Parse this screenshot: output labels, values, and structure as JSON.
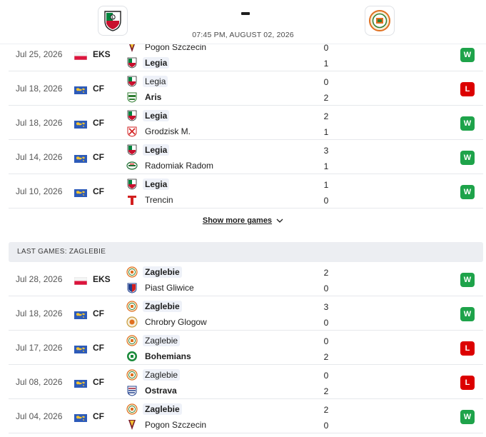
{
  "header": {
    "home_logo": "legia-crest-icon",
    "away_logo": "zaglebie-crest-icon",
    "score_separator": "-",
    "kickoff": "07:45 PM, AUGUST 02, 2026"
  },
  "legia_games": [
    {
      "date": "Jul 25, 2026",
      "flag": "poland-flag-icon",
      "comp": "EKS",
      "team1": "Pogon Szczecin",
      "team1_logo": "pogon-crest-icon",
      "team1_hl": false,
      "team1_win": false,
      "score1": "0",
      "team2": "Legia",
      "team2_logo": "legia-crest-icon",
      "team2_hl": true,
      "team2_win": true,
      "score2": "1",
      "result": "W"
    },
    {
      "date": "Jul 18, 2026",
      "flag": "world-flag-icon",
      "comp": "CF",
      "team1": "Legia",
      "team1_logo": "legia-crest-icon",
      "team1_hl": true,
      "team1_win": false,
      "score1": "0",
      "team2": "Aris",
      "team2_logo": "aris-crest-icon",
      "team2_hl": false,
      "team2_win": true,
      "score2": "2",
      "result": "L"
    },
    {
      "date": "Jul 18, 2026",
      "flag": "world-flag-icon",
      "comp": "CF",
      "team1": "Legia",
      "team1_logo": "legia-crest-icon",
      "team1_hl": true,
      "team1_win": true,
      "score1": "2",
      "team2": "Grodzisk M.",
      "team2_logo": "grodzisk-crest-icon",
      "team2_hl": false,
      "team2_win": false,
      "score2": "1",
      "result": "W"
    },
    {
      "date": "Jul 14, 2026",
      "flag": "world-flag-icon",
      "comp": "CF",
      "team1": "Legia",
      "team1_logo": "legia-crest-icon",
      "team1_hl": true,
      "team1_win": true,
      "score1": "3",
      "team2": "Radomiak Radom",
      "team2_logo": "radomiak-crest-icon",
      "team2_hl": false,
      "team2_win": false,
      "score2": "1",
      "result": "W"
    },
    {
      "date": "Jul 10, 2026",
      "flag": "world-flag-icon",
      "comp": "CF",
      "team1": "Legia",
      "team1_logo": "legia-crest-icon",
      "team1_hl": true,
      "team1_win": true,
      "score1": "1",
      "team2": "Trencin",
      "team2_logo": "trencin-crest-icon",
      "team2_hl": false,
      "team2_win": false,
      "score2": "0",
      "result": "W"
    }
  ],
  "show_more_label": "Show more games",
  "zaglebie_section_title": "LAST GAMES: ZAGLEBIE",
  "zaglebie_games": [
    {
      "date": "Jul 28, 2026",
      "flag": "poland-flag-icon",
      "comp": "EKS",
      "team1": "Zaglebie",
      "team1_logo": "zaglebie-crest-icon",
      "team1_hl": true,
      "team1_win": true,
      "score1": "2",
      "team2": "Piast Gliwice",
      "team2_logo": "piast-crest-icon",
      "team2_hl": false,
      "team2_win": false,
      "score2": "0",
      "result": "W"
    },
    {
      "date": "Jul 18, 2026",
      "flag": "world-flag-icon",
      "comp": "CF",
      "team1": "Zaglebie",
      "team1_logo": "zaglebie-crest-icon",
      "team1_hl": true,
      "team1_win": true,
      "score1": "3",
      "team2": "Chrobry Glogow",
      "team2_logo": "chrobry-crest-icon",
      "team2_hl": false,
      "team2_win": false,
      "score2": "0",
      "result": "W"
    },
    {
      "date": "Jul 17, 2026",
      "flag": "world-flag-icon",
      "comp": "CF",
      "team1": "Zaglebie",
      "team1_logo": "zaglebie-crest-icon",
      "team1_hl": true,
      "team1_win": false,
      "score1": "0",
      "team2": "Bohemians",
      "team2_logo": "bohemians-crest-icon",
      "team2_hl": false,
      "team2_win": true,
      "score2": "2",
      "result": "L"
    },
    {
      "date": "Jul 08, 2026",
      "flag": "world-flag-icon",
      "comp": "CF",
      "team1": "Zaglebie",
      "team1_logo": "zaglebie-crest-icon",
      "team1_hl": true,
      "team1_win": false,
      "score1": "0",
      "team2": "Ostrava",
      "team2_logo": "ostrava-crest-icon",
      "team2_hl": false,
      "team2_win": true,
      "score2": "2",
      "result": "L"
    },
    {
      "date": "Jul 04, 2026",
      "flag": "world-flag-icon",
      "comp": "CF",
      "team1": "Zaglebie",
      "team1_logo": "zaglebie-crest-icon",
      "team1_hl": true,
      "team1_win": true,
      "score1": "2",
      "team2": "Pogon Szczecin",
      "team2_logo": "pogon-crest-icon",
      "team2_hl": false,
      "team2_win": false,
      "score2": "0",
      "result": "W"
    }
  ],
  "colors": {
    "win": "#1ea34a",
    "loss": "#dc0000",
    "legia_green": "#00843d",
    "zaglebie_orange": "#e07020"
  }
}
